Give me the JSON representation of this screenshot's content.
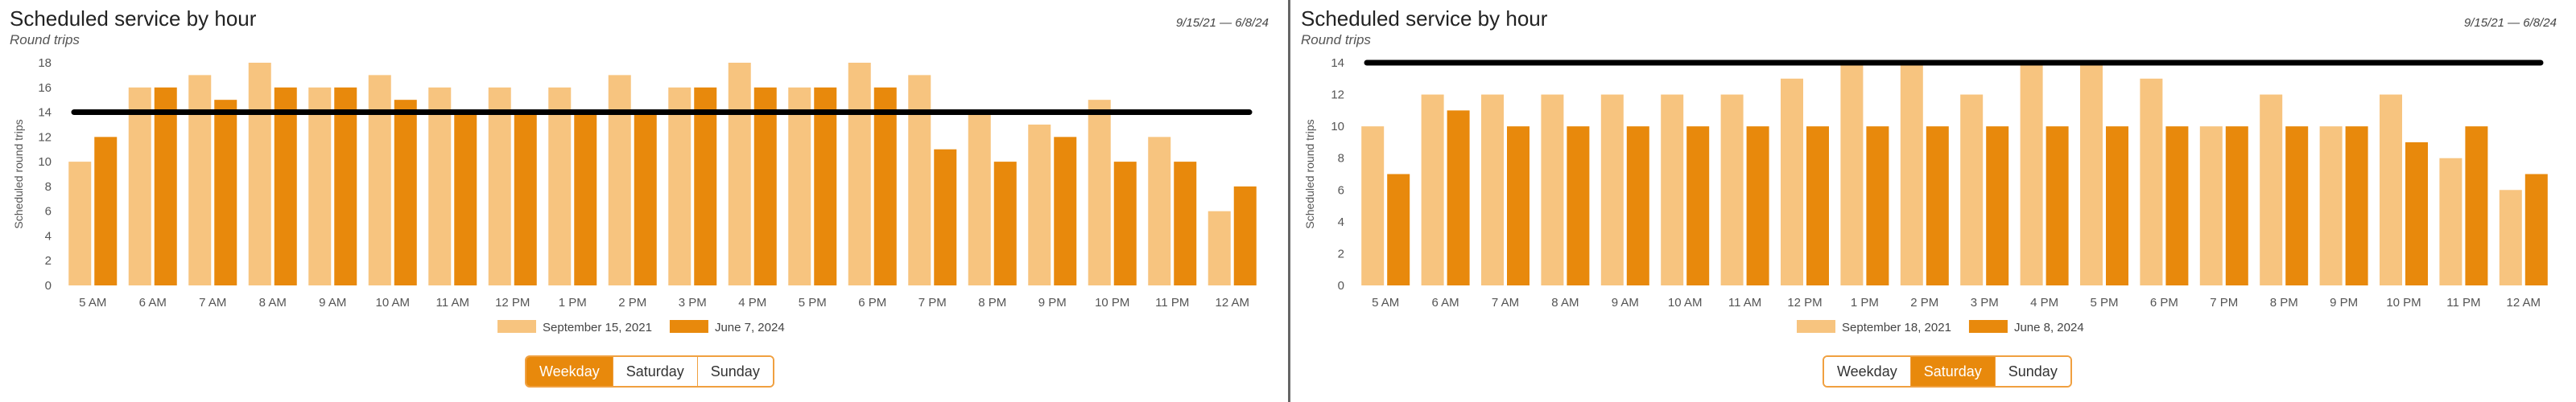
{
  "chart_data": [
    {
      "type": "bar",
      "title": "Scheduled service by hour",
      "subtitle": "Round trips",
      "date_range": "9/15/21 — 6/8/24",
      "ylabel": "Scheduled round trips",
      "ylim": [
        0,
        18
      ],
      "yticks": [
        0,
        2,
        4,
        6,
        8,
        10,
        12,
        14,
        16,
        18
      ],
      "reference_line": 14,
      "categories": [
        "5 AM",
        "6 AM",
        "7 AM",
        "8 AM",
        "9 AM",
        "10 AM",
        "11 AM",
        "12 PM",
        "1 PM",
        "2 PM",
        "3 PM",
        "4 PM",
        "5 PM",
        "6 PM",
        "7 PM",
        "8 PM",
        "9 PM",
        "10 PM",
        "11 PM",
        "12 AM"
      ],
      "series": [
        {
          "name": "September 15, 2021",
          "color": "#f7c47f",
          "values": [
            10,
            16,
            17,
            18,
            16,
            17,
            16,
            16,
            16,
            17,
            16,
            18,
            16,
            18,
            17,
            14,
            13,
            15,
            12,
            6
          ]
        },
        {
          "name": "June 7, 2024",
          "color": "#e8890c",
          "values": [
            12,
            16,
            15,
            16,
            16,
            15,
            14,
            14,
            14,
            14,
            16,
            16,
            16,
            16,
            11,
            10,
            12,
            10,
            10,
            8
          ]
        }
      ],
      "legend_position": "bottom",
      "grid": false,
      "tabs": [
        {
          "label": "Weekday",
          "active": true
        },
        {
          "label": "Saturday",
          "active": false
        },
        {
          "label": "Sunday",
          "active": false
        }
      ]
    },
    {
      "type": "bar",
      "title": "Scheduled service by hour",
      "subtitle": "Round trips",
      "date_range": "9/15/21 — 6/8/24",
      "ylabel": "Scheduled round trips",
      "ylim": [
        0,
        14
      ],
      "yticks": [
        0,
        2,
        4,
        6,
        8,
        10,
        12,
        14
      ],
      "reference_line": 14,
      "categories": [
        "5 AM",
        "6 AM",
        "7 AM",
        "8 AM",
        "9 AM",
        "10 AM",
        "11 AM",
        "12 PM",
        "1 PM",
        "2 PM",
        "3 PM",
        "4 PM",
        "5 PM",
        "6 PM",
        "7 PM",
        "8 PM",
        "9 PM",
        "10 PM",
        "11 PM",
        "12 AM"
      ],
      "series": [
        {
          "name": "September 18, 2021",
          "color": "#f7c47f",
          "values": [
            10,
            12,
            12,
            12,
            12,
            12,
            12,
            13,
            14,
            14,
            12,
            14,
            14,
            13,
            10,
            12,
            10,
            12,
            8,
            6
          ]
        },
        {
          "name": "June 8, 2024",
          "color": "#e8890c",
          "values": [
            7,
            11,
            10,
            10,
            10,
            10,
            10,
            10,
            10,
            10,
            10,
            10,
            10,
            10,
            10,
            10,
            10,
            9,
            10,
            7
          ]
        }
      ],
      "legend_position": "bottom",
      "grid": false,
      "tabs": [
        {
          "label": "Weekday",
          "active": false
        },
        {
          "label": "Saturday",
          "active": true
        },
        {
          "label": "Sunday",
          "active": false
        }
      ]
    }
  ]
}
